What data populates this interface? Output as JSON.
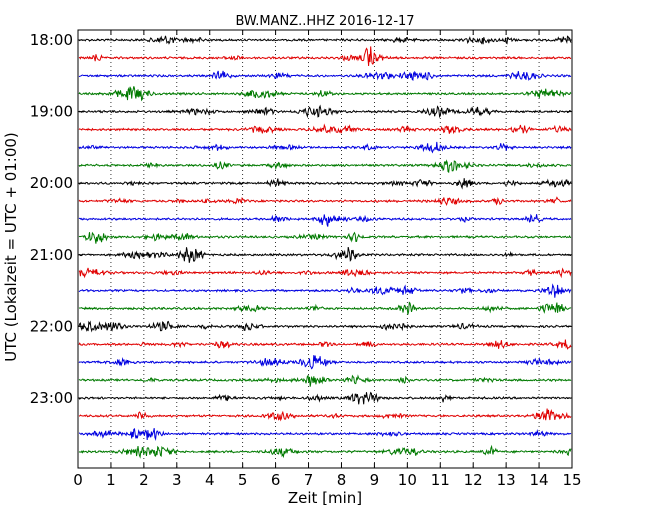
{
  "chart_data": {
    "type": "line",
    "title": "BW.MANZ..HHZ 2016-12-17",
    "xlabel": "Zeit  [min]",
    "ylabel": "UTC (Lokalzeit = UTC + 01:00)",
    "xlim": [
      0,
      15
    ],
    "x_ticks": [
      0,
      1,
      2,
      3,
      4,
      5,
      6,
      7,
      8,
      9,
      10,
      11,
      12,
      13,
      14,
      15
    ],
    "y_tick_labels": [
      "18:00",
      "19:00",
      "20:00",
      "21:00",
      "22:00",
      "23:00"
    ],
    "y_tick_rows": [
      0,
      4,
      8,
      12,
      16,
      20
    ],
    "vertical_grid": "dotted at each minute",
    "trace_colors": [
      "#000000",
      "#e00000",
      "#0000e0",
      "#007a00"
    ],
    "series": [
      {
        "start": "18:00",
        "offset": 0
      },
      {
        "start": "18:15",
        "offset": 0
      },
      {
        "start": "18:30",
        "offset": 0
      },
      {
        "start": "18:45",
        "offset": 0
      },
      {
        "start": "19:00",
        "offset": 0
      },
      {
        "start": "19:15",
        "offset": 0
      },
      {
        "start": "19:30",
        "offset": 0
      },
      {
        "start": "19:45",
        "offset": 0
      },
      {
        "start": "20:00",
        "offset": 0
      },
      {
        "start": "20:15",
        "offset": 0
      },
      {
        "start": "20:30",
        "offset": 0
      },
      {
        "start": "20:45",
        "offset": 0
      },
      {
        "start": "21:00",
        "offset": 0
      },
      {
        "start": "21:15",
        "offset": 0
      },
      {
        "start": "21:30",
        "offset": 0
      },
      {
        "start": "21:45",
        "offset": 0
      },
      {
        "start": "22:00",
        "offset": 0
      },
      {
        "start": "22:15",
        "offset": 0
      },
      {
        "start": "22:30",
        "offset": 0
      },
      {
        "start": "22:45",
        "offset": 0
      },
      {
        "start": "23:00",
        "offset": 0
      },
      {
        "start": "23:15",
        "offset": 0
      },
      {
        "start": "23:30",
        "offset": 0
      },
      {
        "start": "23:45",
        "offset": 0
      }
    ]
  }
}
